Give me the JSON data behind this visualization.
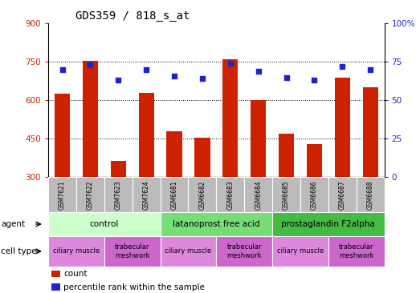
{
  "title": "GDS359 / 818_s_at",
  "samples": [
    "GSM7621",
    "GSM7622",
    "GSM7623",
    "GSM7624",
    "GSM6681",
    "GSM6682",
    "GSM6683",
    "GSM6684",
    "GSM6685",
    "GSM6686",
    "GSM6687",
    "GSM6688"
  ],
  "count_values": [
    625,
    755,
    365,
    630,
    480,
    455,
    760,
    600,
    470,
    430,
    690,
    650
  ],
  "percentile_values": [
    70,
    73,
    63,
    70,
    66,
    64,
    74,
    69,
    65,
    63,
    72,
    70
  ],
  "ylim_left": [
    300,
    900
  ],
  "ylim_right": [
    0,
    100
  ],
  "yticks_left": [
    300,
    450,
    600,
    750,
    900
  ],
  "yticks_right": [
    0,
    25,
    50,
    75,
    100
  ],
  "yticklabels_right": [
    "0",
    "25",
    "50",
    "75",
    "100%"
  ],
  "bar_color": "#cc2200",
  "dot_color": "#2222cc",
  "bar_width": 0.55,
  "agent_groups": [
    {
      "label": "control",
      "start": 0,
      "end": 3,
      "color": "#ccffcc"
    },
    {
      "label": "latanoprost free acid",
      "start": 4,
      "end": 7,
      "color": "#77dd77"
    },
    {
      "label": "prostaglandin F2alpha",
      "start": 8,
      "end": 11,
      "color": "#44bb44"
    }
  ],
  "cell_type_groups": [
    {
      "label": "ciliary muscle",
      "start": 0,
      "end": 1,
      "color": "#dd88dd"
    },
    {
      "label": "trabecular\nmeshwork",
      "start": 2,
      "end": 3,
      "color": "#cc66cc"
    },
    {
      "label": "ciliary muscle",
      "start": 4,
      "end": 5,
      "color": "#dd88dd"
    },
    {
      "label": "trabecular\nmeshwork",
      "start": 6,
      "end": 7,
      "color": "#cc66cc"
    },
    {
      "label": "ciliary muscle",
      "start": 8,
      "end": 9,
      "color": "#dd88dd"
    },
    {
      "label": "trabecular\nmeshwork",
      "start": 10,
      "end": 11,
      "color": "#cc66cc"
    }
  ],
  "tick_label_color_left": "#cc2200",
  "tick_label_color_right": "#2222cc",
  "x_tick_bg": "#bbbbbb",
  "grid_dotted_ticks": [
    450,
    600,
    750
  ]
}
